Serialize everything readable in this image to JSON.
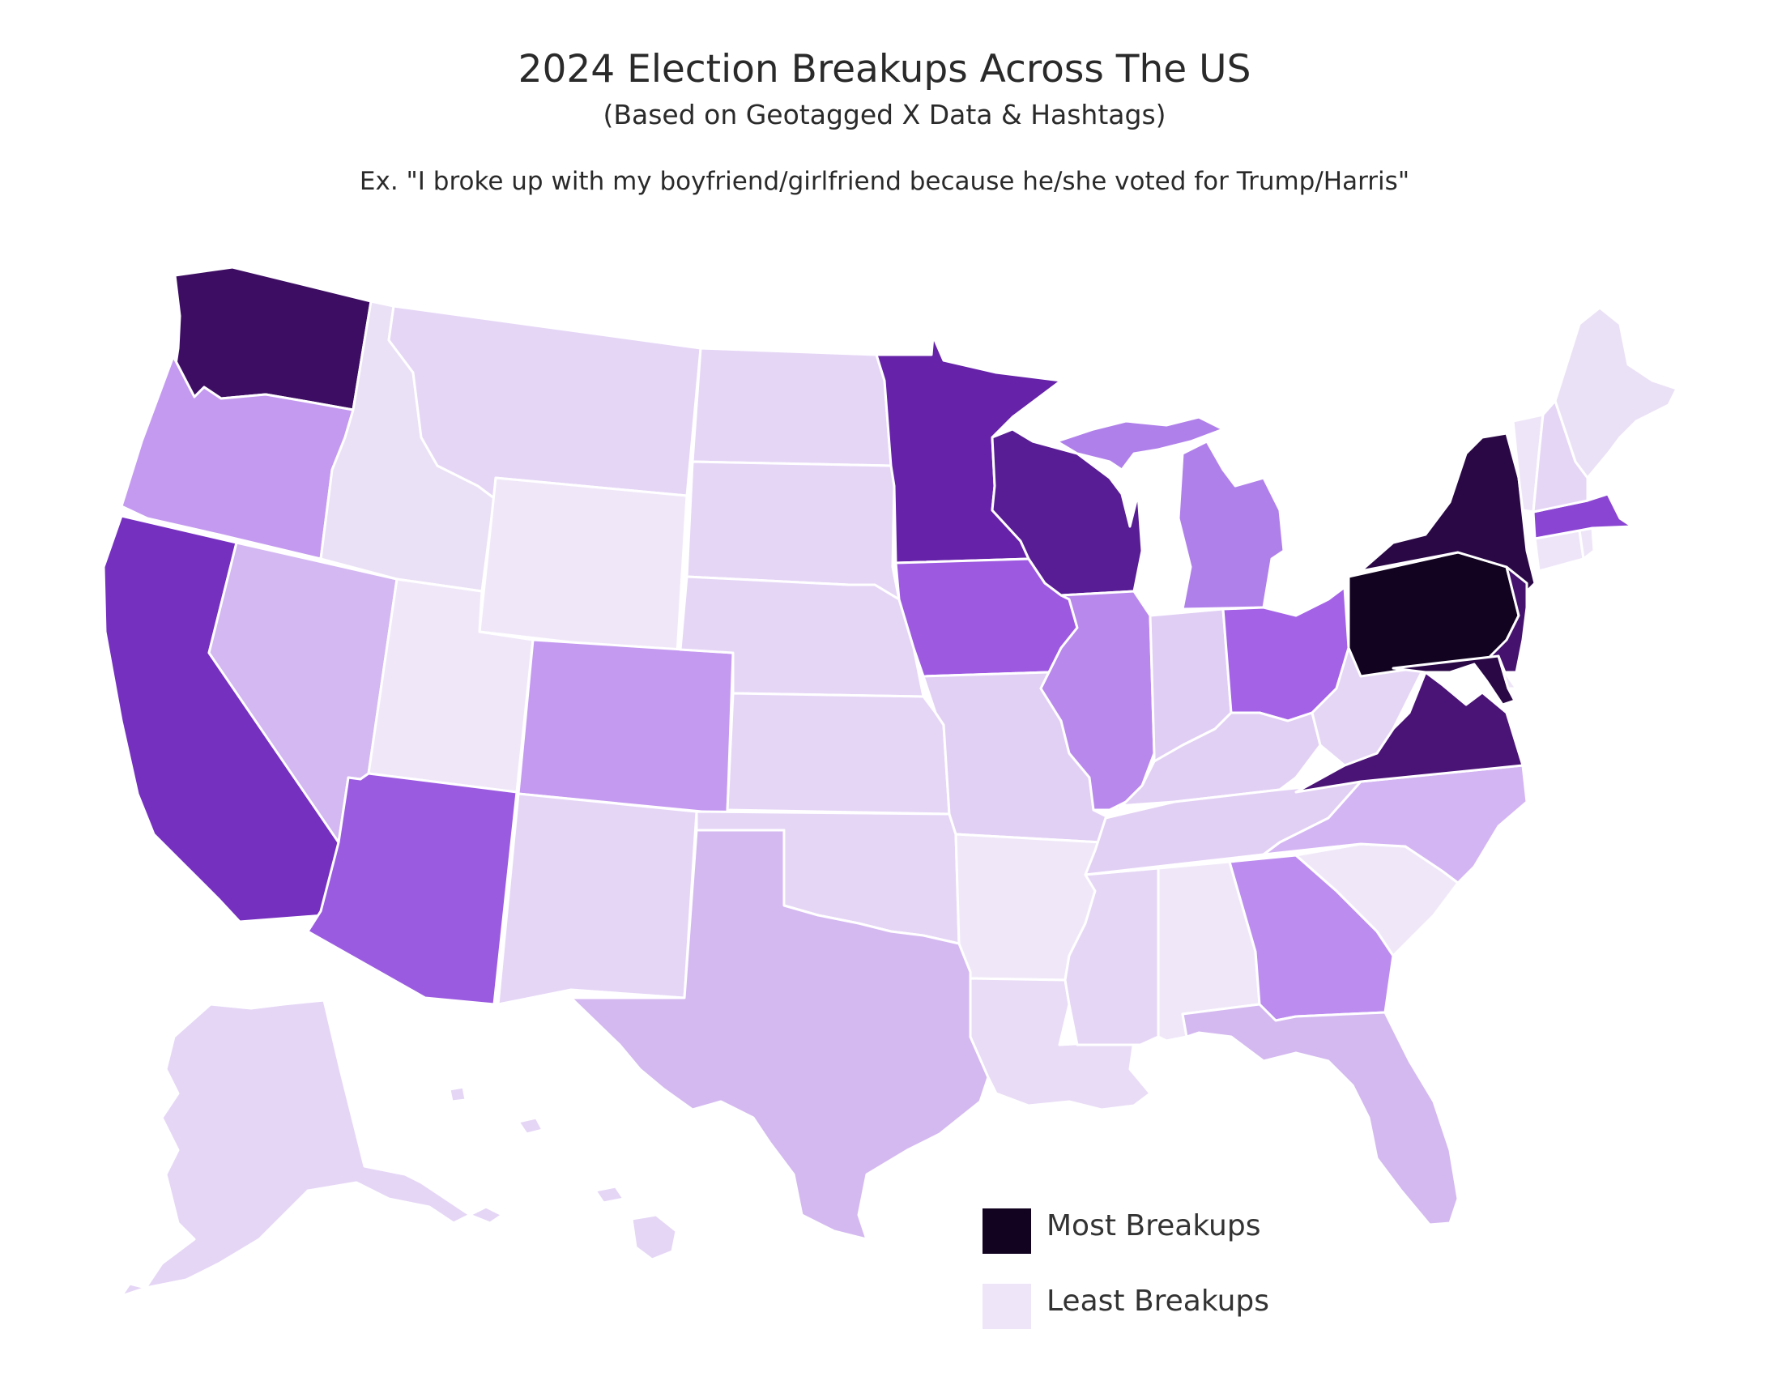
{
  "title": "2024 Election Breakups Across The US",
  "subtitle": "(Based on Geotagged X Data & Hashtags)",
  "example": "Ex. \"I broke up with my boyfriend/girlfriend because he/she voted for Trump/Harris\"",
  "legend": {
    "most": {
      "label": "Most Breakups",
      "color": "#120321"
    },
    "least": {
      "label": "Least Breakups",
      "color": "#eee6f8"
    }
  },
  "states": {
    "WA": "#3d0d63",
    "OR": "#c49af0",
    "CA": "#7530bf",
    "NV": "#d3b8f1",
    "ID": "#ebe1f6",
    "MT": "#e5d6f6",
    "WY": "#f0e8f8",
    "UT": "#f0e8f8",
    "AZ": "#9b5be0",
    "NM": "#e5d6f6",
    "CO": "#c49af0",
    "ND": "#e5d6f6",
    "SD": "#e5d6f6",
    "NE": "#e5d6f6",
    "KS": "#e5d6f6",
    "OK": "#e5d6f6",
    "TX": "#d4b9f0",
    "MN": "#6622a8",
    "IA": "#9d5ae0",
    "MO": "#e2d0f4",
    "AR": "#f0e8f8",
    "LA": "#e9dcf6",
    "WI": "#581c94",
    "IL": "#b988ec",
    "MI": "#b080ea",
    "IN": "#e0cef4",
    "OH": "#a463e6",
    "KY": "#e2d0f4",
    "TN": "#e2d0f4",
    "MS": "#e5d6f6",
    "AL": "#f0e8f8",
    "GA": "#bc8def",
    "FL": "#d4b9f0",
    "SC": "#f0e8f8",
    "NC": "#d4b5f3",
    "VA": "#4a1376",
    "WV": "#e5d6f6",
    "PA": "#120321",
    "NY": "#2a0846",
    "NJ": "#45126e",
    "DE": "#eee6f8",
    "MD": "#2a0846",
    "CT": "#eee6f8",
    "RI": "#eee6f8",
    "MA": "#8a46d2",
    "VT": "#eee6f8",
    "NH": "#e5d6f6",
    "ME": "#ebe1f6",
    "AK": "#e5d6f6",
    "HI": "#e5d6f6"
  }
}
